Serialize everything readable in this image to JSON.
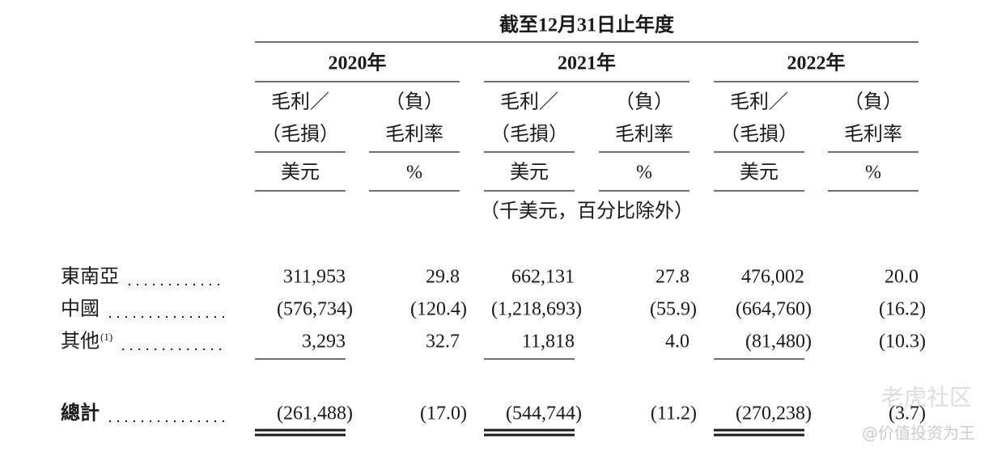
{
  "header": {
    "period": "截至12月31日止年度",
    "years": [
      "2020年",
      "2021年",
      "2022年"
    ],
    "columns": [
      [
        "毛利／",
        "（毛損）"
      ],
      [
        "（負）",
        "毛利率"
      ]
    ],
    "units": [
      "美元",
      "%"
    ],
    "note": "（千美元，百分比除外）"
  },
  "table": {
    "rows": [
      {
        "label": "東南亞",
        "values": [
          "311,953",
          "29.8",
          "662,131",
          "27.8",
          "476,002",
          "20.0"
        ]
      },
      {
        "label": "中國",
        "values": [
          "(576,734)",
          "(120.4)",
          "(1,218,693)",
          "(55.9)",
          "(664,760)",
          "(16.2)"
        ]
      },
      {
        "label": "其他",
        "footnote": "(1)",
        "values": [
          "3,293",
          "32.7",
          "11,818",
          "4.0",
          "(81,480)",
          "(10.3)"
        ]
      }
    ],
    "total": {
      "label": "總計",
      "values": [
        "(261,488)",
        "(17.0)",
        "(544,744)",
        "(11.2)",
        "(270,238)",
        "(3.7)"
      ]
    }
  },
  "watermark": {
    "brand": "老虎社区",
    "author": "@价值投资为王"
  }
}
